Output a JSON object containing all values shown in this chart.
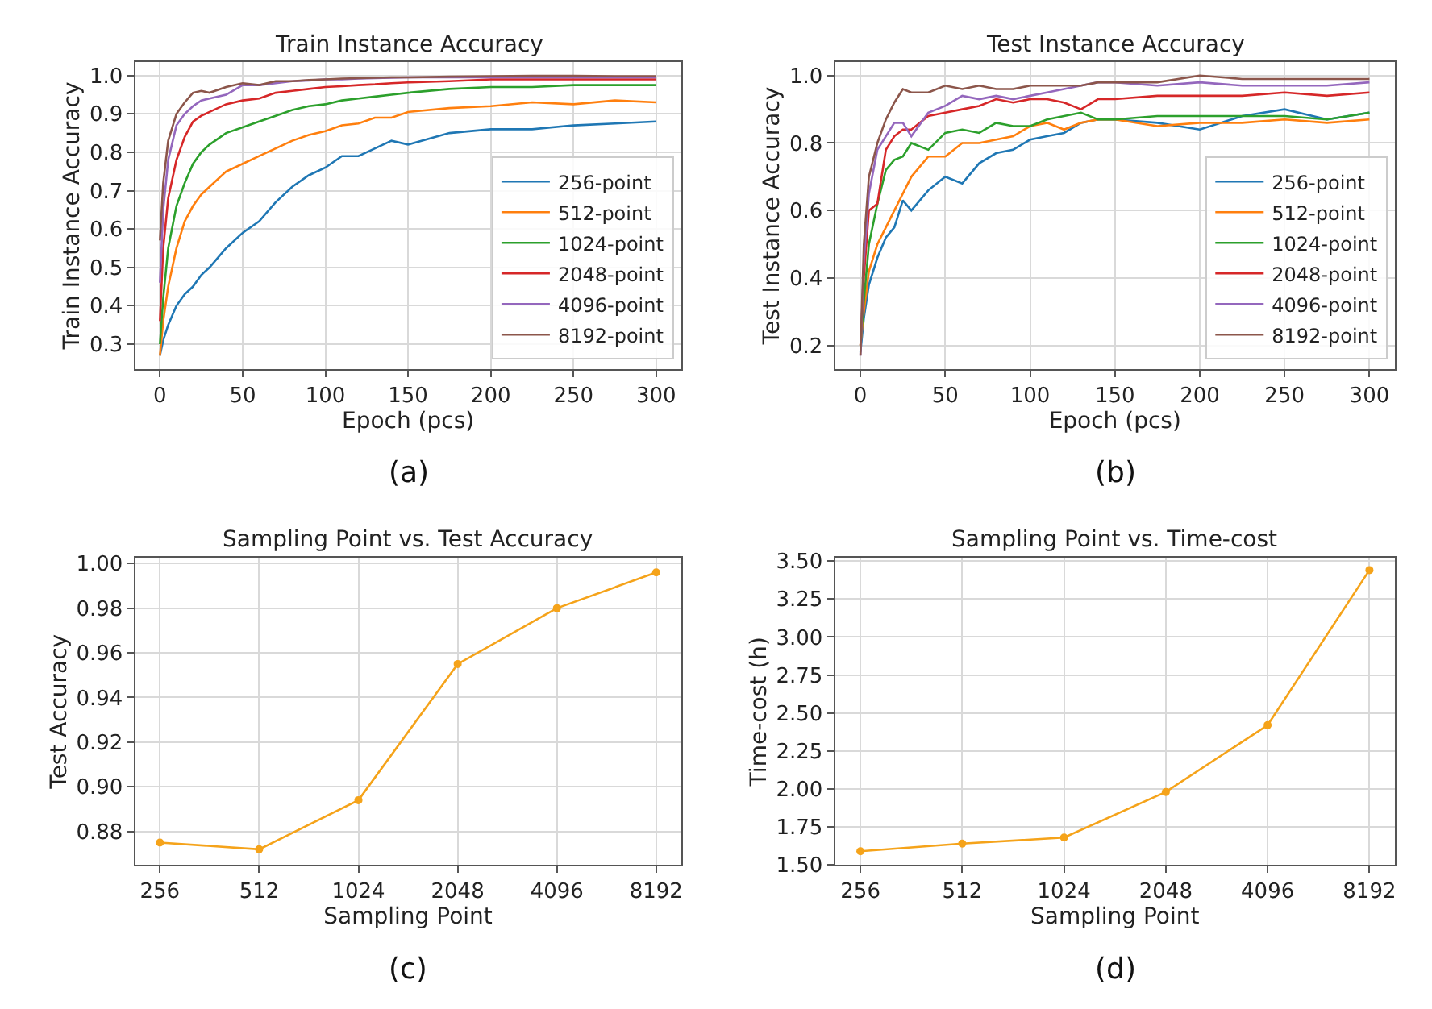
{
  "chart_data": [
    {
      "type": "line",
      "title": "Train Instance Accuracy",
      "xlabel": "Epoch (pcs)",
      "ylabel": "Train Instance Accuracy",
      "annotations": [
        "(a)"
      ],
      "x": [
        0,
        2,
        5,
        10,
        15,
        20,
        25,
        30,
        40,
        50,
        60,
        70,
        80,
        90,
        100,
        110,
        120,
        130,
        140,
        150,
        175,
        200,
        225,
        250,
        275,
        300
      ],
      "series": [
        {
          "name": "256-point",
          "color": "#1f77b4",
          "values": [
            0.27,
            0.31,
            0.35,
            0.4,
            0.43,
            0.45,
            0.48,
            0.5,
            0.55,
            0.59,
            0.62,
            0.67,
            0.71,
            0.74,
            0.76,
            0.79,
            0.79,
            0.81,
            0.83,
            0.82,
            0.85,
            0.86,
            0.86,
            0.87,
            0.875,
            0.88
          ]
        },
        {
          "name": "512-point",
          "color": "#ff7f0e",
          "values": [
            0.27,
            0.36,
            0.45,
            0.55,
            0.62,
            0.66,
            0.69,
            0.71,
            0.75,
            0.77,
            0.79,
            0.81,
            0.83,
            0.845,
            0.855,
            0.87,
            0.875,
            0.89,
            0.89,
            0.905,
            0.915,
            0.92,
            0.93,
            0.925,
            0.935,
            0.93
          ]
        },
        {
          "name": "1024-point",
          "color": "#2ca02c",
          "values": [
            0.3,
            0.42,
            0.55,
            0.66,
            0.72,
            0.77,
            0.8,
            0.82,
            0.85,
            0.865,
            0.88,
            0.895,
            0.91,
            0.92,
            0.925,
            0.935,
            0.94,
            0.945,
            0.95,
            0.955,
            0.965,
            0.97,
            0.97,
            0.975,
            0.975,
            0.975
          ]
        },
        {
          "name": "2048-point",
          "color": "#d62728",
          "values": [
            0.36,
            0.55,
            0.68,
            0.78,
            0.84,
            0.88,
            0.895,
            0.905,
            0.925,
            0.935,
            0.94,
            0.955,
            0.96,
            0.965,
            0.97,
            0.972,
            0.975,
            0.977,
            0.98,
            0.982,
            0.985,
            0.99,
            0.99,
            0.99,
            0.99,
            0.99
          ]
        },
        {
          "name": "4096-point",
          "color": "#9467bd",
          "values": [
            0.46,
            0.65,
            0.78,
            0.87,
            0.9,
            0.92,
            0.935,
            0.94,
            0.95,
            0.975,
            0.975,
            0.98,
            0.985,
            0.987,
            0.99,
            0.99,
            0.992,
            0.993,
            0.994,
            0.995,
            0.995,
            0.995,
            0.995,
            0.995,
            0.995,
            0.995
          ]
        },
        {
          "name": "8192-point",
          "color": "#8c564b",
          "values": [
            0.57,
            0.72,
            0.83,
            0.9,
            0.93,
            0.955,
            0.96,
            0.955,
            0.97,
            0.98,
            0.975,
            0.985,
            0.985,
            0.988,
            0.99,
            0.992,
            0.993,
            0.994,
            0.995,
            0.995,
            0.997,
            0.998,
            0.999,
            0.999,
            0.998,
            0.998
          ]
        }
      ],
      "xlim": [
        -15,
        315
      ],
      "ylim": [
        0.235,
        1.035
      ],
      "xticks": [
        0,
        50,
        100,
        150,
        200,
        250,
        300
      ],
      "yticks": [
        0.3,
        0.4,
        0.5,
        0.6,
        0.7,
        0.8,
        0.9,
        {
          "value": 1.0,
          "label": "1.0"
        }
      ],
      "grid": true,
      "legend": "bottom right"
    },
    {
      "type": "line",
      "title": "Test Instance Accuracy",
      "xlabel": "Epoch (pcs)",
      "ylabel": "Test Instance Accuracy",
      "annotations": [
        "(b)"
      ],
      "x": [
        0,
        2,
        5,
        10,
        15,
        20,
        25,
        30,
        40,
        50,
        60,
        70,
        80,
        90,
        100,
        110,
        120,
        130,
        140,
        150,
        175,
        200,
        225,
        250,
        275,
        300
      ],
      "series": [
        {
          "name": "256-point",
          "color": "#1f77b4",
          "values": [
            0.18,
            0.28,
            0.38,
            0.46,
            0.52,
            0.55,
            0.63,
            0.6,
            0.66,
            0.7,
            0.68,
            0.74,
            0.77,
            0.78,
            0.81,
            0.82,
            0.83,
            0.86,
            0.87,
            0.87,
            0.86,
            0.84,
            0.88,
            0.9,
            0.87,
            0.89
          ]
        },
        {
          "name": "512-point",
          "color": "#ff7f0e",
          "values": [
            0.2,
            0.3,
            0.42,
            0.5,
            0.55,
            0.6,
            0.65,
            0.7,
            0.76,
            0.76,
            0.8,
            0.8,
            0.81,
            0.82,
            0.85,
            0.86,
            0.84,
            0.86,
            0.87,
            0.87,
            0.85,
            0.86,
            0.86,
            0.87,
            0.86,
            0.87
          ]
        },
        {
          "name": "1024-point",
          "color": "#2ca02c",
          "values": [
            0.2,
            0.33,
            0.5,
            0.62,
            0.72,
            0.75,
            0.76,
            0.8,
            0.78,
            0.83,
            0.84,
            0.83,
            0.86,
            0.85,
            0.85,
            0.87,
            0.88,
            0.89,
            0.87,
            0.87,
            0.88,
            0.88,
            0.88,
            0.88,
            0.87,
            0.89
          ]
        },
        {
          "name": "2048-point",
          "color": "#d62728",
          "values": [
            0.2,
            0.4,
            0.6,
            0.62,
            0.78,
            0.82,
            0.84,
            0.84,
            0.88,
            0.89,
            0.9,
            0.91,
            0.93,
            0.92,
            0.93,
            0.93,
            0.92,
            0.9,
            0.93,
            0.93,
            0.94,
            0.94,
            0.94,
            0.95,
            0.94,
            0.95
          ]
        },
        {
          "name": "4096-point",
          "color": "#9467bd",
          "values": [
            0.17,
            0.45,
            0.65,
            0.78,
            0.82,
            0.86,
            0.86,
            0.82,
            0.89,
            0.91,
            0.94,
            0.93,
            0.94,
            0.93,
            0.94,
            0.95,
            0.96,
            0.97,
            0.98,
            0.98,
            0.97,
            0.98,
            0.97,
            0.97,
            0.97,
            0.98
          ]
        },
        {
          "name": "8192-point",
          "color": "#8c564b",
          "values": [
            0.17,
            0.5,
            0.7,
            0.8,
            0.87,
            0.92,
            0.96,
            0.95,
            0.95,
            0.97,
            0.96,
            0.97,
            0.96,
            0.96,
            0.97,
            0.97,
            0.97,
            0.97,
            0.98,
            0.98,
            0.98,
            1.0,
            0.99,
            0.99,
            0.99,
            0.99
          ]
        }
      ],
      "xlim": [
        -15,
        315
      ],
      "ylim": [
        0.13,
        1.04
      ],
      "xticks": [
        0,
        50,
        100,
        150,
        200,
        250,
        300
      ],
      "yticks": [
        0.2,
        0.4,
        0.6,
        0.8,
        {
          "value": 1.0,
          "label": "1.0"
        }
      ],
      "grid": true,
      "legend": "bottom right"
    },
    {
      "type": "line",
      "title": "Sampling Point vs. Test Accuracy",
      "xlabel": "Sampling Point",
      "ylabel": "Test Accuracy",
      "annotations": [
        "(c)"
      ],
      "categories": [
        "256",
        "512",
        "1024",
        "2048",
        "4096",
        "8192"
      ],
      "series": [
        {
          "color": "#f5a31a",
          "values": [
            0.875,
            0.872,
            0.894,
            0.955,
            0.98,
            0.996
          ]
        }
      ],
      "ylim": [
        0.865,
        1.0025
      ],
      "yticks": [
        0.88,
        {
          "value": 0.9,
          "label": "0.90"
        },
        0.92,
        0.94,
        0.96,
        0.98,
        {
          "value": 1.0,
          "label": "1.00"
        }
      ],
      "grid": true,
      "marker": "circle"
    },
    {
      "type": "line",
      "title": "Sampling Point vs. Time-cost",
      "xlabel": "Sampling Point",
      "ylabel": "Time-cost (h)",
      "annotations": [
        "(d)"
      ],
      "categories": [
        "256",
        "512",
        "1024",
        "2048",
        "4096",
        "8192"
      ],
      "series": [
        {
          "color": "#f5a31a",
          "values": [
            1.59,
            1.64,
            1.68,
            1.98,
            2.42,
            3.44
          ]
        }
      ],
      "ylim": [
        1.5,
        3.52
      ],
      "yticks": [
        {
          "value": 1.5,
          "label": "1.50"
        },
        1.75,
        {
          "value": 2.0,
          "label": "2.00"
        },
        2.25,
        {
          "value": 2.5,
          "label": "2.50"
        },
        2.75,
        {
          "value": 3.0,
          "label": "3.00"
        },
        3.25,
        {
          "value": 3.5,
          "label": "3.50"
        }
      ],
      "grid": true,
      "marker": "circle"
    }
  ]
}
